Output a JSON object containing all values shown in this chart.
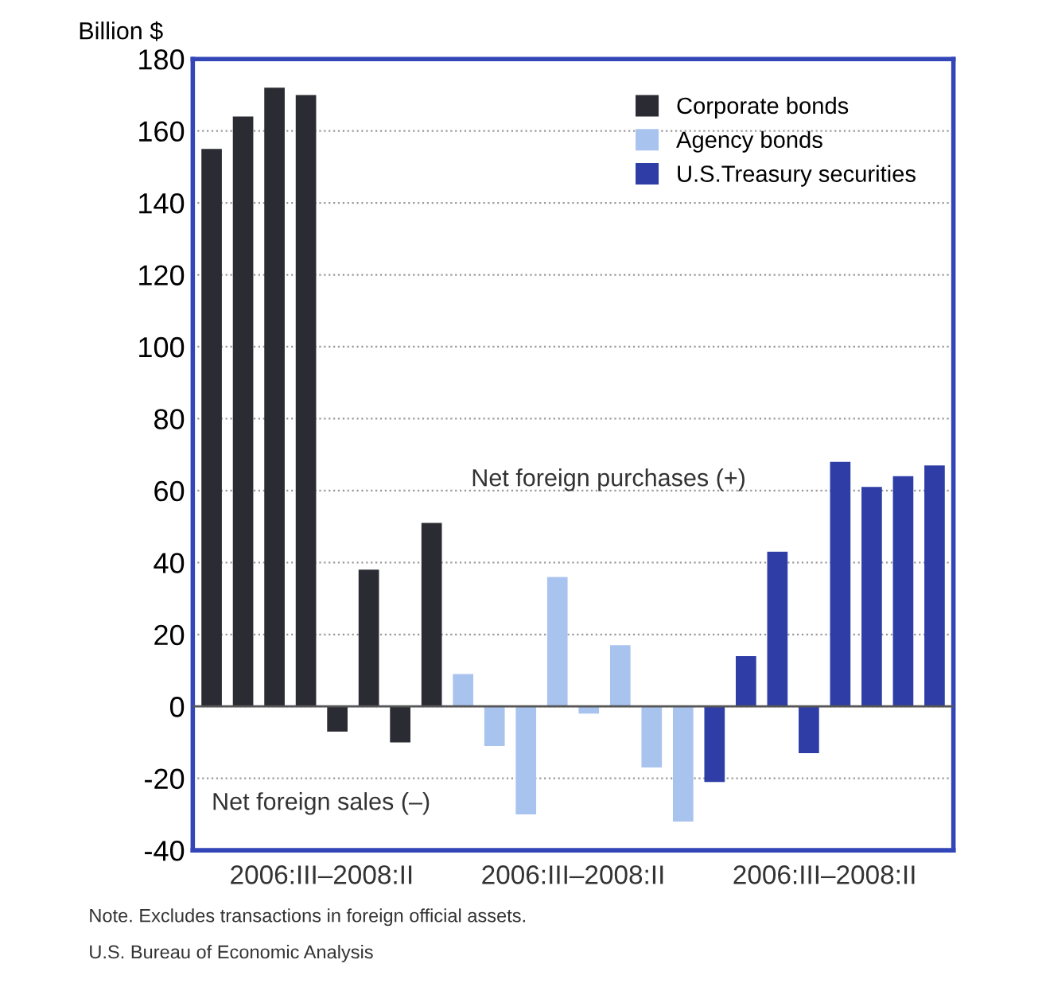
{
  "chart_data": {
    "type": "bar",
    "ylabel": "Billion $",
    "categories": [
      null,
      null,
      null,
      null,
      null,
      null,
      null,
      null,
      null,
      null,
      null,
      null,
      null,
      null,
      null,
      null,
      null,
      null,
      null,
      null,
      null,
      null,
      null,
      null
    ],
    "series": [
      {
        "name": "Corporate bonds",
        "color": "#2b2b33",
        "values": [
          155,
          164,
          172,
          170,
          -7,
          38,
          -10,
          51,
          null,
          null,
          null,
          null,
          null,
          null,
          null,
          null,
          null,
          null,
          null,
          null,
          null,
          null,
          null,
          null
        ]
      },
      {
        "name": "Agency bonds",
        "color": "#a9c3ef",
        "values": [
          null,
          null,
          null,
          null,
          null,
          null,
          null,
          null,
          9,
          -11,
          -30,
          36,
          -2,
          17,
          -17,
          -32,
          null,
          null,
          null,
          null,
          null,
          null,
          null,
          null
        ]
      },
      {
        "name": "U.S.Treasury securities",
        "color": "#2e3ea6",
        "values": [
          null,
          null,
          null,
          null,
          null,
          null,
          null,
          null,
          null,
          null,
          null,
          null,
          null,
          null,
          null,
          null,
          -21,
          14,
          43,
          -13,
          68,
          61,
          64,
          67
        ]
      }
    ],
    "ylim": [
      -40,
      180
    ],
    "yticks": [
      -40,
      -20,
      0,
      20,
      40,
      60,
      80,
      100,
      120,
      140,
      160,
      180
    ],
    "grid": "y",
    "legend": "top right",
    "annotations": [
      "Net foreign purchases (+)",
      "Net foreign sales (–)",
      "2006:III–2008:II",
      "2006:III–2008:II",
      "2006:III–2008:II",
      "Note. Excludes transactions in foreign official assets.",
      "U.S. Bureau of Economic Analysis"
    ]
  }
}
